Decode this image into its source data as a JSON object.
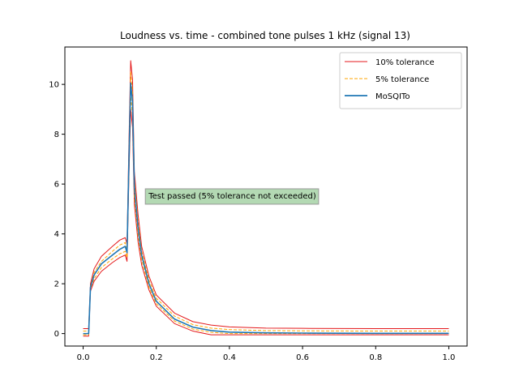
{
  "chart_data": {
    "type": "line",
    "title": "Loudness vs. time - combined tone pulses 1 kHz (signal 13)",
    "xlabel": "",
    "ylabel": "",
    "xlim": [
      -0.05,
      1.05
    ],
    "ylim": [
      -0.5,
      11.5
    ],
    "xticks": [
      0.0,
      0.2,
      0.4,
      0.6,
      0.8,
      1.0
    ],
    "xtick_labels": [
      "0.0",
      "0.2",
      "0.4",
      "0.6",
      "0.8",
      "1.0"
    ],
    "yticks": [
      0,
      2,
      4,
      6,
      8,
      10
    ],
    "ytick_labels": [
      "0",
      "2",
      "4",
      "6",
      "8",
      "10"
    ],
    "grid": false,
    "legend_position": "top-right",
    "series": [
      {
        "name": "10% tolerance",
        "color": "#e41a1c",
        "style": "solid",
        "role": "band",
        "upper": {
          "x": [
            0.0,
            0.01,
            0.015,
            0.02,
            0.03,
            0.05,
            0.08,
            0.1,
            0.115,
            0.12,
            0.125,
            0.13,
            0.135,
            0.14,
            0.15,
            0.16,
            0.18,
            0.2,
            0.25,
            0.3,
            0.35,
            0.4,
            0.5,
            0.6,
            0.8,
            1.0
          ],
          "y": [
            0.2,
            0.2,
            0.2,
            2.0,
            2.6,
            3.1,
            3.5,
            3.75,
            3.85,
            3.6,
            7.5,
            10.95,
            10.2,
            6.5,
            4.8,
            3.5,
            2.3,
            1.55,
            0.82,
            0.48,
            0.34,
            0.27,
            0.22,
            0.21,
            0.2,
            0.2
          ]
        },
        "lower": {
          "x": [
            0.0,
            0.01,
            0.015,
            0.02,
            0.03,
            0.05,
            0.08,
            0.1,
            0.115,
            0.12,
            0.125,
            0.13,
            0.135,
            0.14,
            0.15,
            0.16,
            0.18,
            0.2,
            0.25,
            0.3,
            0.35,
            0.4,
            0.5,
            0.6,
            0.8,
            1.0
          ],
          "y": [
            -0.1,
            -0.1,
            -0.1,
            1.7,
            2.1,
            2.5,
            2.85,
            3.05,
            3.15,
            2.9,
            6.2,
            9.0,
            8.3,
            5.2,
            3.7,
            2.75,
            1.75,
            1.1,
            0.4,
            0.1,
            -0.05,
            -0.05,
            -0.05,
            -0.05,
            -0.05,
            -0.05
          ]
        }
      },
      {
        "name": "5% tolerance",
        "color": "#ffa500",
        "style": "dashed",
        "role": "band",
        "upper": {
          "x": [
            0.0,
            0.01,
            0.015,
            0.02,
            0.03,
            0.05,
            0.08,
            0.1,
            0.115,
            0.12,
            0.125,
            0.13,
            0.135,
            0.14,
            0.15,
            0.16,
            0.18,
            0.2,
            0.25,
            0.3,
            0.35,
            0.4,
            0.5,
            0.6,
            0.8,
            1.0
          ],
          "y": [
            0.1,
            0.1,
            0.1,
            1.9,
            2.45,
            2.9,
            3.3,
            3.55,
            3.65,
            3.4,
            7.0,
            10.5,
            9.7,
            6.2,
            4.5,
            3.3,
            2.15,
            1.42,
            0.7,
            0.36,
            0.22,
            0.16,
            0.12,
            0.11,
            0.1,
            0.1
          ]
        },
        "lower": {
          "x": [
            0.0,
            0.01,
            0.015,
            0.02,
            0.03,
            0.05,
            0.08,
            0.1,
            0.115,
            0.12,
            0.125,
            0.13,
            0.135,
            0.14,
            0.15,
            0.16,
            0.18,
            0.2,
            0.25,
            0.3,
            0.35,
            0.4,
            0.5,
            0.6,
            0.8,
            1.0
          ],
          "y": [
            -0.05,
            -0.05,
            -0.05,
            1.8,
            2.2,
            2.65,
            3.0,
            3.2,
            3.3,
            3.05,
            6.5,
            9.5,
            8.8,
            5.5,
            3.95,
            2.95,
            1.85,
            1.2,
            0.5,
            0.18,
            0.05,
            0.0,
            0.0,
            0.0,
            0.0,
            0.0
          ]
        }
      },
      {
        "name": "MoSQITo",
        "color": "#1f77b4",
        "style": "solid",
        "role": "line",
        "x": [
          0.0,
          0.01,
          0.015,
          0.02,
          0.03,
          0.05,
          0.08,
          0.1,
          0.115,
          0.12,
          0.125,
          0.13,
          0.135,
          0.14,
          0.15,
          0.16,
          0.18,
          0.2,
          0.25,
          0.3,
          0.35,
          0.4,
          0.5,
          0.6,
          0.8,
          1.0
        ],
        "y": [
          0.0,
          0.0,
          0.0,
          1.85,
          2.35,
          2.8,
          3.15,
          3.38,
          3.5,
          3.25,
          6.8,
          10.05,
          9.3,
          5.9,
          4.25,
          3.15,
          2.0,
          1.3,
          0.58,
          0.26,
          0.12,
          0.06,
          0.03,
          0.02,
          0.01,
          0.01
        ]
      }
    ],
    "annotation": {
      "text": "Test passed (5% tolerance not exceeded)",
      "x": 0.17,
      "y": 5.55,
      "box_color": "#b3d9b3",
      "border_color": "#999999"
    }
  }
}
